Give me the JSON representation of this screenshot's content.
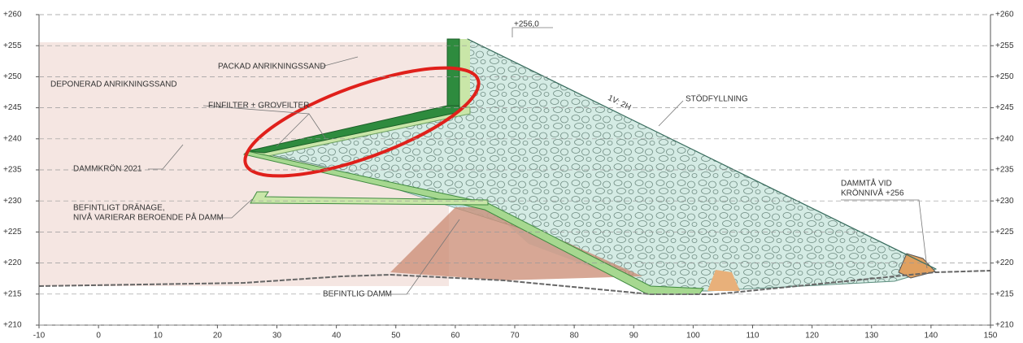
{
  "axes": {
    "xlim": [
      -10,
      150
    ],
    "ylim": [
      210,
      260
    ],
    "xticks": [
      -10,
      0,
      10,
      20,
      30,
      40,
      50,
      60,
      70,
      80,
      90,
      100,
      110,
      120,
      130,
      140,
      150
    ],
    "yticks": [
      {
        "value": 260,
        "label": "+260"
      },
      {
        "value": 255,
        "label": "+255"
      },
      {
        "value": 250,
        "label": "+250"
      },
      {
        "value": 245,
        "label": "+245"
      },
      {
        "value": 240,
        "label": "+240"
      },
      {
        "value": 235,
        "label": "+235"
      },
      {
        "value": 230,
        "label": "+230"
      },
      {
        "value": 225,
        "label": "+225"
      },
      {
        "value": 220,
        "label": "+220"
      },
      {
        "value": 215,
        "label": "+215"
      },
      {
        "value": 210,
        "label": "+210"
      }
    ]
  },
  "annotations": {
    "crest_level": "+256,0",
    "packed_sand": "PACKAD ANRIKNINGSSAND",
    "deposited_sand": "DEPONERAD ANRIKNINGSSAND",
    "filter": "FINFILTER + GROVFILTER",
    "slope": "1V: 2H",
    "support_fill": "STÖDFYLLNING",
    "dam_crest_2021": "DAMMKRÖN 2021",
    "drainage": [
      "BEFINTLIGT DRÄNAGE,",
      "NIVÅ VARIERAR BEROENDE PÅ DAMM"
    ],
    "dam_toe": [
      "DAMMTÅ VID",
      "KRÖNNIVÅ +256"
    ],
    "existing_dam": "BEFINTLIG DAMM"
  }
}
